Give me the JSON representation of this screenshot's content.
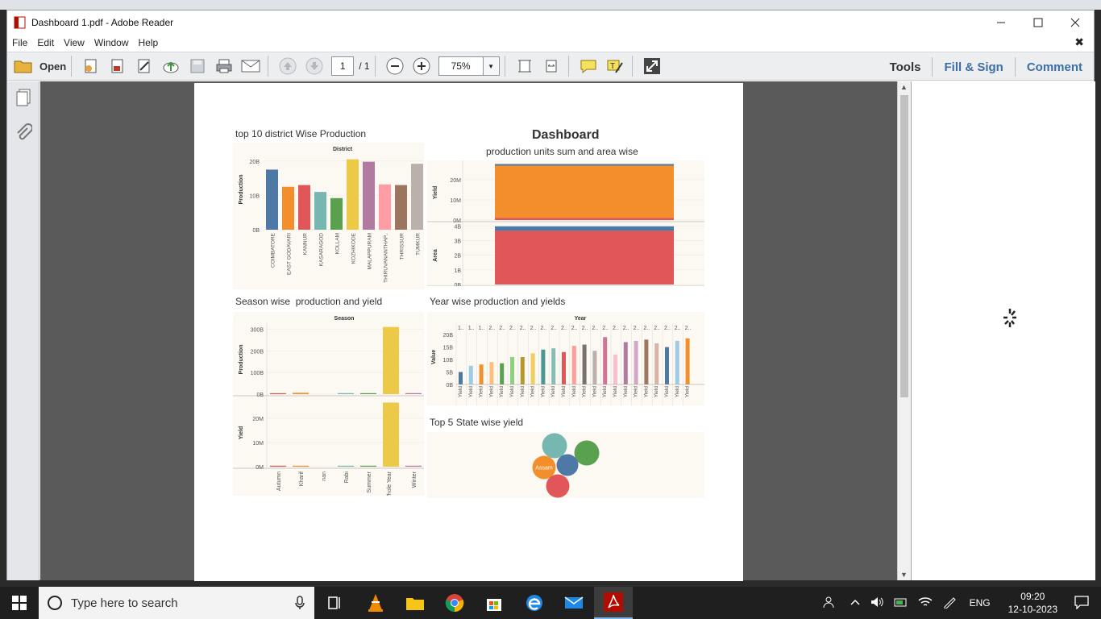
{
  "window": {
    "title": "Dashboard 1.pdf - Adobe Reader"
  },
  "menu": [
    "File",
    "Edit",
    "View",
    "Window",
    "Help"
  ],
  "toolbar": {
    "open_label": "Open",
    "page_current": "1",
    "page_total": "/ 1",
    "zoom": "75%",
    "tools_label": "Tools",
    "fillsign_label": "Fill & Sign",
    "comment_label": "Comment"
  },
  "dashboard": {
    "title": "Dashboard",
    "district_title": "top 10 district Wise Production",
    "area_title": "production units sum and area wise",
    "season_title": "Season wise  production and yield",
    "year_title": "Year wise production and yields",
    "state_title": "Top 5 State wise yield"
  },
  "chart_data": [
    {
      "type": "bar",
      "title": "top 10 district Wise Production",
      "header": "District",
      "ylabel": "Production",
      "yticks": [
        "20B",
        "10B",
        "0B"
      ],
      "ylim": [
        0,
        23
      ],
      "categories": [
        "COIMBATORE",
        "EAST GODAVARI",
        "KANNUR",
        "KASARAGOD",
        "KOLLAM",
        "KOZHIKODE",
        "MALAPPURAM",
        "THIRUVANANTHAP..",
        "THRISSUR",
        "TUMKUR"
      ],
      "values": [
        17.5,
        12.5,
        13,
        11,
        9.2,
        20.5,
        19.8,
        13.2,
        13,
        19.2
      ],
      "colors": [
        "#4e79a7",
        "#f28e2b",
        "#e15759",
        "#76b7b2",
        "#59a14f",
        "#edc948",
        "#b07aa1",
        "#ff9da7",
        "#9c755f",
        "#bab0ac"
      ]
    },
    {
      "type": "area",
      "title": "production units sum and area wise",
      "panes": [
        {
          "ylabel": "Yield",
          "yticks": [
            "20M",
            "10M",
            "0M"
          ],
          "ylim": [
            0,
            28
          ],
          "layers": [
            {
              "color": "#e15759",
              "value": 1
            },
            {
              "color": "#f28e2b",
              "value": 26
            },
            {
              "color": "#4e79a7",
              "value": 0.8
            }
          ]
        },
        {
          "ylabel": "Area",
          "yticks": [
            "4B",
            "3B",
            "2B",
            "1B",
            "0B"
          ],
          "ylim": [
            0,
            4
          ],
          "layers": [
            {
              "color": "#e15759",
              "value": 3.6
            },
            {
              "color": "#4e79a7",
              "value": 0.3
            }
          ]
        }
      ]
    },
    {
      "type": "bar",
      "title": "Season wise  production and yield",
      "header": "Season",
      "categories": [
        "Autumn",
        "Kharif",
        "nan",
        "Rabi",
        "Summer",
        "Whole Year",
        "Winter"
      ],
      "panes": [
        {
          "ylabel": "Production",
          "yticks": [
            "300B",
            "200B",
            "100B",
            "0B"
          ],
          "ylim": [
            0,
            320
          ],
          "values": [
            0.5,
            6,
            0,
            2,
            0.3,
            310,
            0.2
          ],
          "colors": [
            "#e15759",
            "#f28e2b",
            "#76b7b2",
            "#76b7b2",
            "#59a14f",
            "#edc948",
            "#b07aa1"
          ]
        },
        {
          "ylabel": "Yield",
          "yticks": [
            "20M",
            "10M",
            "0M"
          ],
          "ylim": [
            0,
            28
          ],
          "values": [
            0.05,
            0.4,
            0,
            0.05,
            0.02,
            26.5,
            0.02
          ],
          "colors": [
            "#e15759",
            "#f28e2b",
            "#76b7b2",
            "#76b7b2",
            "#59a14f",
            "#edc948",
            "#b07aa1"
          ]
        }
      ]
    },
    {
      "type": "bar",
      "title": "Year wise production and yields",
      "header": "Year",
      "ylabel": "Value",
      "yticks": [
        "20B",
        "15B",
        "10B",
        "5B",
        "0B"
      ],
      "ylim": [
        0,
        22
      ],
      "column_label": "2..",
      "first_labels": [
        "1..",
        "1..",
        "1.."
      ],
      "xtick": "Yield",
      "values": [
        5,
        7.5,
        8,
        9,
        8.5,
        11,
        11,
        12.5,
        14,
        14.5,
        13,
        15.5,
        16,
        13.5,
        19,
        12,
        17,
        17.5,
        18,
        16.5,
        15,
        17.5,
        18.5
      ],
      "colors": [
        "#4e79a7",
        "#a0cbe8",
        "#f28e2b",
        "#ffbe7d",
        "#59a14f",
        "#8cd17d",
        "#b6992d",
        "#f1ce63",
        "#499894",
        "#86bcb6",
        "#e15759",
        "#ff9d9a",
        "#79706e",
        "#bab0ac",
        "#d37295",
        "#fabfd2",
        "#b07aa1",
        "#d4a6c8",
        "#9d7660",
        "#d7b5a6",
        "#4e79a7",
        "#a0cbe8",
        "#f28e2b"
      ]
    },
    {
      "type": "bubble",
      "title": "Top 5 State wise yield",
      "bubbles": [
        {
          "label": "",
          "color": "#76b7b2",
          "value": 14
        },
        {
          "label": "",
          "color": "#59a14f",
          "value": 14
        },
        {
          "label": "Assam",
          "color": "#f28e2b",
          "value": 13
        },
        {
          "label": "",
          "color": "#4e79a7",
          "value": 12
        },
        {
          "label": "",
          "color": "#e15759",
          "value": 13
        }
      ]
    }
  ],
  "taskbar": {
    "search_placeholder": "Type here to search",
    "lang": "ENG",
    "time": "09:20",
    "date": "12-10-2023"
  }
}
